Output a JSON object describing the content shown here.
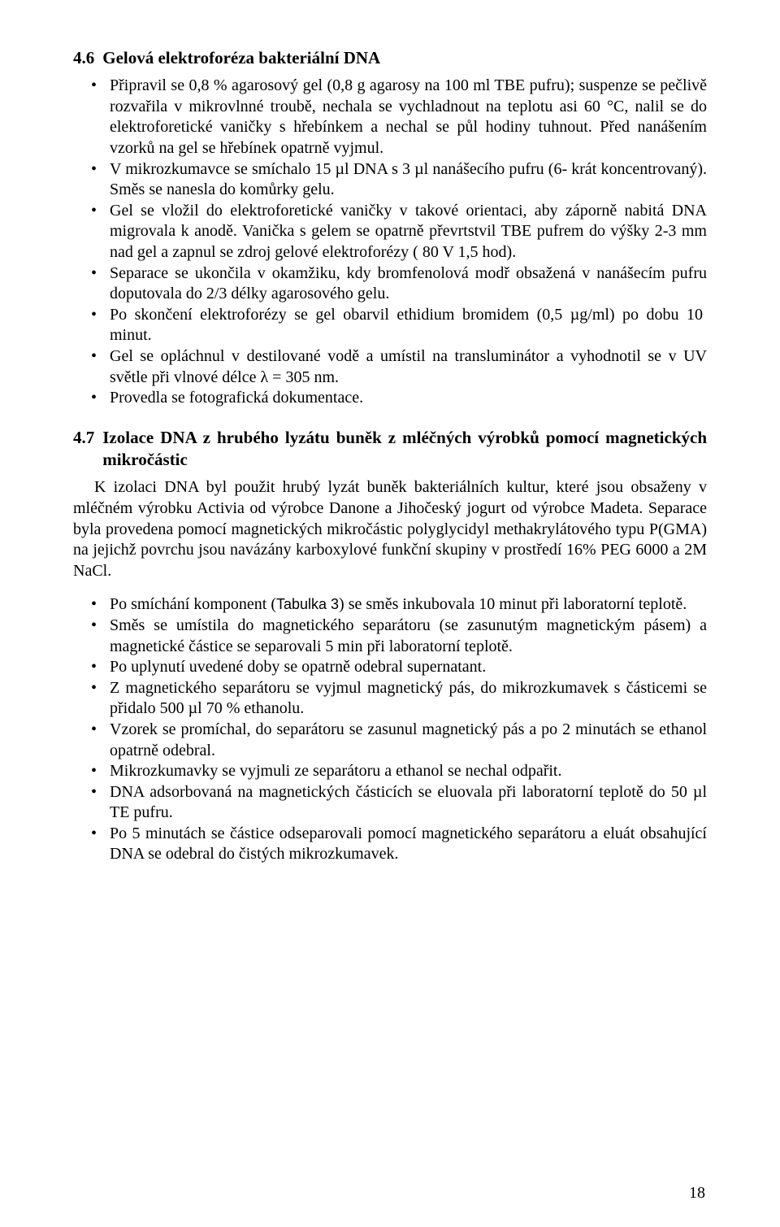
{
  "section46": {
    "number": "4.6",
    "title": "Gelová elektroforéza bakteriální DNA",
    "bullets": [
      "Připravil se 0,8 % agarosový gel (0,8 g agarosy na 100 ml TBE pufru); suspenze se pečlivě rozvařila v mikrovlnné troubě, nechala se vychladnout na teplotu asi 60 °C, nalil se do elektroforetické vaničky s hřebínkem a nechal se půl hodiny tuhnout. Před nanášením vzorků na gel se hřebínek opatrně vyjmul.",
      "V mikrozkumavce se smíchalo 15 µl DNA s 3 µl nanášecího pufru (6- krát koncentrovaný). Směs se nanesla do komůrky gelu.",
      "Gel se vložil do elektroforetické vaničky v takové orientaci, aby záporně nabitá DNA migrovala k anodě. Vanička s gelem se opatrně převrtstvil  TBE pufrem do výšky 2-3 mm nad gel a zapnul se zdroj gelové elektroforézy ( 80 V 1,5 hod).",
      "Separace se ukončila v okamžiku, kdy bromfenolová modř obsažená v nanášecím pufru doputovala do 2/3 délky agarosového gelu.",
      "Po skončení elektroforézy se gel obarvil ethidium bromidem (0,5 µg/ml) po dobu 10  minut.",
      "Gel se opláchnul v destilované vodě a umístil na transluminátor a vyhodnotil se v UV světle při vlnové délce λ = 305 nm.",
      "Provedla se fotografická dokumentace."
    ]
  },
  "section47": {
    "number": "4.7",
    "title": "Izolace DNA z hrubého lyzátu buněk z mléčných výrobků pomocí magnetických mikročástic",
    "intro": "K izolaci DNA byl použit hrubý lyzát buněk bakteriálních kultur, které jsou obsaženy v mléčném výrobku Activia od výrobce Danone a Jihočeský jogurt od výrobce Madeta. Separace byla provedena pomocí magnetických mikročástic polyglycidyl methakrylátového typu P(GMA) na jejichž povrchu jsou navázány karboxylové funkční skupiny v prostředí 16% PEG 6000 a 2M NaCl.",
    "bullets": [
      "Po smíchání komponent (Tabulka 3) se směs inkubovala 10 minut při laboratorní teplotě.",
      "Směs se umístila do magnetického separátoru (se zasunutým magnetickým pásem) a magnetické částice se separovali 5 min při laboratorní teplotě.",
      "Po uplynutí uvedené doby se opatrně odebral supernatant.",
      "Z magnetického separátoru se vyjmul magnetický pás, do mikrozkumavek s částicemi se přidalo 500 µl 70 % ethanolu.",
      "Vzorek se promíchal, do separátoru se zasunul magnetický pás a po 2 minutách se ethanol opatrně odebral.",
      "Mikrozkumavky se vyjmuli ze separátoru a ethanol se nechal odpařit.",
      "DNA adsorbovaná na magnetických částicích se eluovala při laboratorní teplotě do 50 µl TE pufru.",
      "Po 5 minutách se částice odseparovali pomocí magnetického separátoru a eluát obsahující DNA se odebral do čistých mikrozkumavek."
    ],
    "bullet0_prefix": "Po smíchání komponent (",
    "bullet0_tabref": "Tabulka 3",
    "bullet0_suffix": ") se směs inkubovala 10 minut při laboratorní teplotě."
  },
  "page_number": "18"
}
